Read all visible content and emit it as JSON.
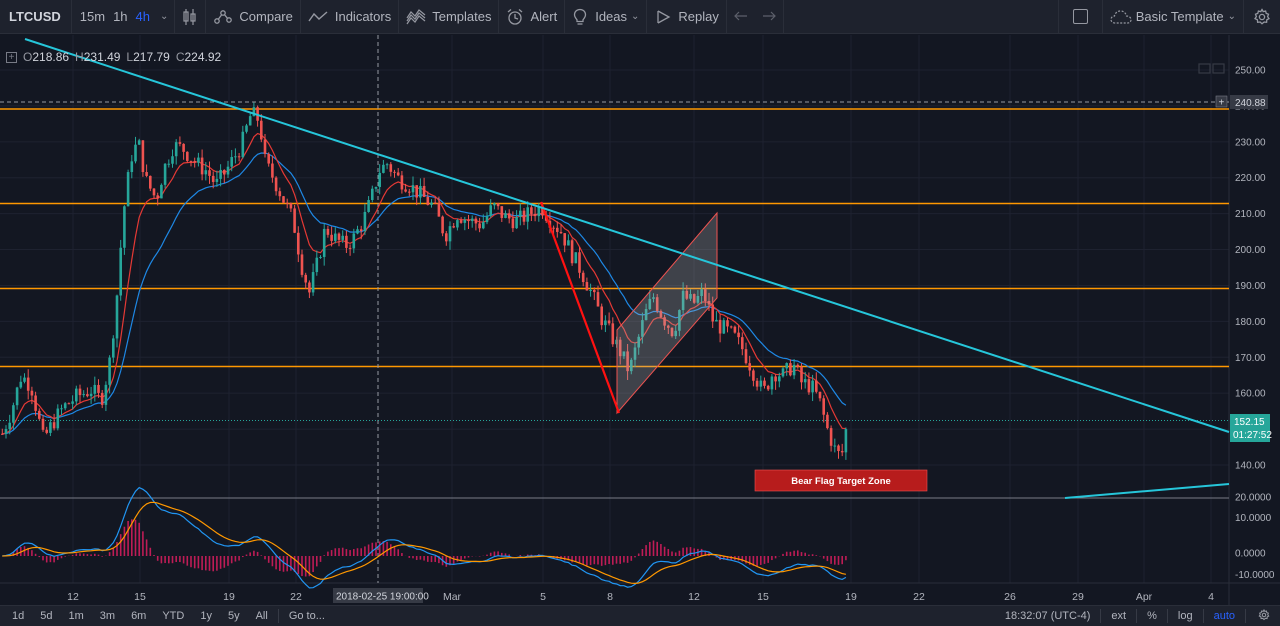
{
  "toolbar": {
    "symbol": "LTCUSD",
    "intervals": [
      "15m",
      "1h",
      "4h"
    ],
    "active_interval": "4h",
    "compare_label": "Compare",
    "indicators_label": "Indicators",
    "templates_label": "Templates",
    "alert_label": "Alert",
    "ideas_label": "Ideas",
    "replay_label": "Replay",
    "template_name": "Basic Template"
  },
  "legend": {
    "o_label": "O",
    "o_value": "218.86",
    "h_label": "H",
    "h_value": "231.49",
    "l_label": "L",
    "l_value": "217.79",
    "c_label": "C",
    "c_value": "224.92"
  },
  "price_axis": {
    "ticks": [
      "250.00",
      "240.00",
      "230.00",
      "220.00",
      "210.00",
      "200.00",
      "190.00",
      "180.00",
      "170.00",
      "160.00",
      "150.00",
      "140.00"
    ],
    "crosshair_price": "240.88",
    "last_price": "152.15",
    "countdown": "01:27:52"
  },
  "macd_axis": {
    "ticks": [
      "20.0000",
      "10.0000",
      "0.0000",
      "-10.0000"
    ]
  },
  "time_axis": {
    "ticks": [
      "12",
      "15",
      "19",
      "22",
      "Mar",
      "5",
      "8",
      "12",
      "15",
      "19",
      "22",
      "26",
      "29",
      "Apr",
      "4"
    ],
    "crosshair_time": "2018-02-25 19:00:00"
  },
  "annotation": {
    "label": "Bear Flag Target Zone"
  },
  "bottombar": {
    "ranges": [
      "1d",
      "5d",
      "1m",
      "3m",
      "6m",
      "YTD",
      "1y",
      "5y",
      "All"
    ],
    "goto_label": "Go to...",
    "clock": "18:32:07 (UTC-4)",
    "ext_label": "ext",
    "pct_label": "%",
    "log_label": "log",
    "auto_label": "auto"
  },
  "colors": {
    "background": "#131722",
    "up_candle": "#26a69a",
    "down_candle": "#ef5350",
    "trendline": "#26c6da",
    "support_line": "#ff9800",
    "ema_fast": "#e53935",
    "ema_slow": "#1e88e5",
    "macd_hist": "#e91e63",
    "annotation_bg": "#b71c1c",
    "active_blue": "#2962ff"
  },
  "icons": {
    "candle_style": "candles-icon",
    "compare": "compare-icon",
    "indicators": "indicators-icon",
    "templates": "templates-icon",
    "alert": "alarm-clock-icon",
    "ideas": "lightbulb-icon",
    "replay": "replay-icon",
    "undo": "undo-icon",
    "redo": "redo-icon",
    "layout": "layout-square-icon",
    "cloud": "cloud-icon",
    "settings": "gear-icon"
  }
}
